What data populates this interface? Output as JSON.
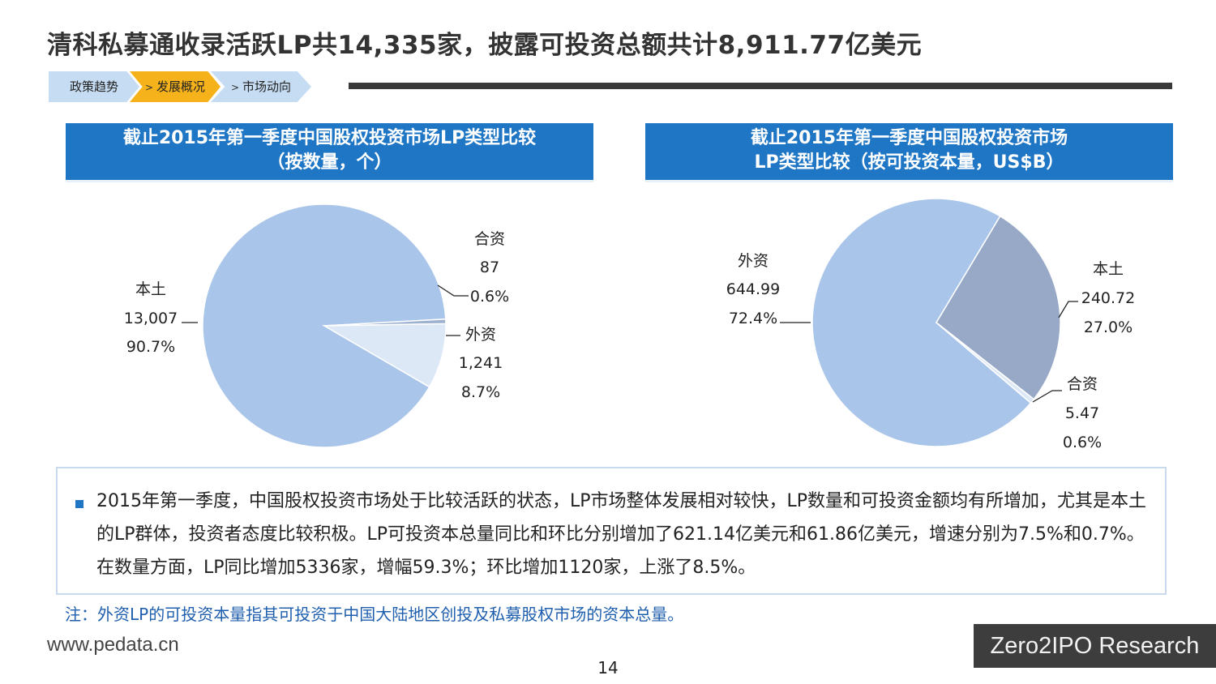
{
  "title": "清科私募通收录活跃LP共14,335家，披露可投资总额共计8,911.77亿美元",
  "breadcrumb": {
    "items": [
      "政策趋势",
      "发展概况",
      "市场动向"
    ],
    "arrow": ">"
  },
  "colors": {
    "accent": "#1f76c5",
    "highlight": "#f6b21a",
    "slice_local": "#aac5ea",
    "slice_foreign": "#dde8f7",
    "slice_jv": "#9fb3d0",
    "slice_local_value": "#97a9c6"
  },
  "chart_data": [
    {
      "type": "pie",
      "title_line1": "截止2015年第一季度中国股权投资市场LP类型比较",
      "title_line2": "（按数量，个）",
      "slices": [
        {
          "name": "本土",
          "value": 13007,
          "value_label": "13,007",
          "percent": "90.7%"
        },
        {
          "name": "合资",
          "value": 87,
          "value_label": "87",
          "percent": "0.6%"
        },
        {
          "name": "外资",
          "value": 1241,
          "value_label": "1,241",
          "percent": "8.7%"
        }
      ]
    },
    {
      "type": "pie",
      "title_line1": "截止2015年第一季度中国股权投资市场",
      "title_line2": "LP类型比较（按可投资本量，US$B）",
      "slices": [
        {
          "name": "外资",
          "value": 644.99,
          "value_label": "644.99",
          "percent": "72.4%"
        },
        {
          "name": "本土",
          "value": 240.72,
          "value_label": "240.72",
          "percent": "27.0%"
        },
        {
          "name": "合资",
          "value": 5.47,
          "value_label": "5.47",
          "percent": "0.6%"
        }
      ]
    }
  ],
  "summary": "2015年第一季度，中国股权投资市场处于比较活跃的状态，LP市场整体发展相对较快，LP数量和可投资金额均有所增加，尤其是本土的LP群体，投资者态度比较积极。LP可投资本总量同比和环比分别增加了621.14亿美元和61.86亿美元，增速分别为7.5%和0.7%。在数量方面，LP同比增加5336家，增幅59.3%；环比增加1120家，上涨了8.5%。",
  "note": "注：外资LP的可投资本量指其可投资于中国大陆地区创投及私募股权市场的资本总量。",
  "website": "www.pedata.cn",
  "brand": "Zero2IPO Research",
  "page_number": "14"
}
